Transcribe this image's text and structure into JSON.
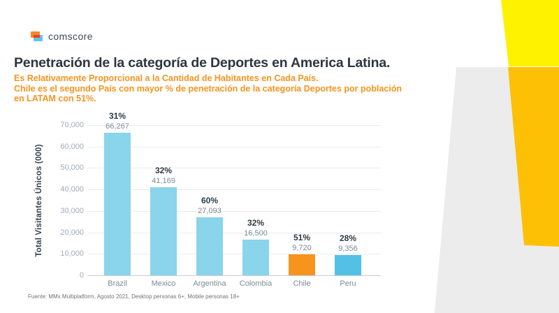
{
  "logo": {
    "text": "comscore"
  },
  "header": {
    "title": "Penetración de la categoría de Deportes en America Latina.",
    "subtitle_lines": [
      "Es Relativamente Proporcional a la Cantidad de Habitantes en Cada País.",
      "Chile es el segundo País con mayor % de penetración de la categoría Deportes por población",
      "en LATAM con 51%."
    ]
  },
  "footer": {
    "source": "Fuente: MMx Multiplatform, Agosto 2021, Desktop personas 6+, Mobile personas 18+"
  },
  "chart_data": {
    "type": "bar",
    "title": "",
    "xlabel": "",
    "ylabel": "Total Visitantes Únicos (000)",
    "categories": [
      "Brazil",
      "Mexico",
      "Argentina",
      "Colombia",
      "Chile",
      "Peru"
    ],
    "values": [
      66267,
      41169,
      27093,
      16500,
      9720,
      9356
    ],
    "value_labels": [
      "66,267",
      "41,169",
      "27,093",
      "16,500",
      "9,720",
      "9,356"
    ],
    "pct_labels": [
      "31%",
      "32%",
      "60%",
      "32%",
      "51%",
      "28%"
    ],
    "bar_colors": [
      "#8ad4ec",
      "#8ad4ec",
      "#8ad4ec",
      "#8ad4ec",
      "#f7941e",
      "#55c0e6"
    ],
    "ylim": [
      0,
      70000
    ],
    "ytick_step": 10000,
    "ytick_labels": [
      "0",
      "10,000",
      "20,000",
      "30,000",
      "40,000",
      "50,000",
      "60,000",
      "70,000"
    ],
    "grid": true,
    "legend": "none"
  },
  "colors": {
    "accent_orange": "#f7941d",
    "title_navy": "#2c3640",
    "decor_yellow": "#fef200",
    "decor_amber": "#fdc005",
    "decor_gray": "#ececec"
  }
}
